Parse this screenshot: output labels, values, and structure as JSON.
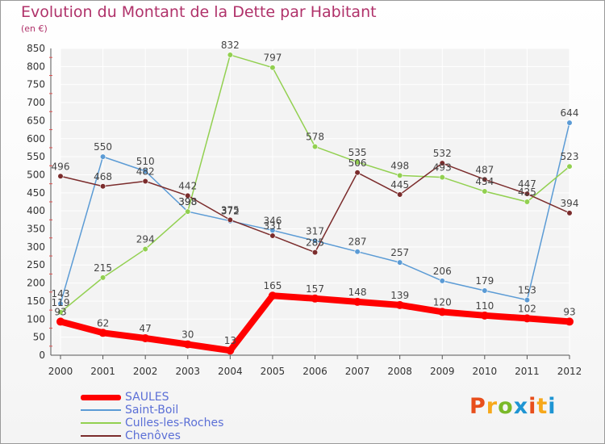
{
  "header": {
    "title": "Evolution du Montant de la Dette par Habitant",
    "subtitle": "(en €)"
  },
  "logo": {
    "text": "Proxiti",
    "colors": [
      "#e84e1b",
      "#f7a81b",
      "#7ab929",
      "#1e95d3",
      "#e84e1b",
      "#f7a81b",
      "#1e95d3"
    ]
  },
  "chart_data": {
    "type": "line",
    "title": "Evolution du Montant de la Dette par Habitant",
    "subtitle": "(en €)",
    "x": [
      "2000",
      "2001",
      "2002",
      "2003",
      "2004",
      "2005",
      "2006",
      "2007",
      "2008",
      "2009",
      "2010",
      "2011",
      "2012"
    ],
    "ylim": [
      0,
      850
    ],
    "yticks": [
      0,
      50,
      100,
      150,
      200,
      250,
      300,
      350,
      400,
      450,
      500,
      550,
      600,
      650,
      700,
      750,
      800,
      850
    ],
    "grid": true,
    "legend_position": "bottom-left",
    "series": [
      {
        "name": "SAULES",
        "color": "#ff0000",
        "values": [
          93,
          62,
          47,
          30,
          13,
          165,
          157,
          148,
          139,
          120,
          110,
          102,
          93
        ]
      },
      {
        "name": "Saint-Boil",
        "color": "#5b9bd5",
        "values": [
          143,
          550,
          510,
          398,
          372,
          346,
          317,
          287,
          257,
          206,
          179,
          153,
          644
        ]
      },
      {
        "name": "Culles-les-Roches",
        "color": "#92d050",
        "values": [
          119,
          215,
          294,
          398,
          832,
          797,
          578,
          535,
          498,
          493,
          454,
          425,
          523
        ]
      },
      {
        "name": "Chenôves",
        "color": "#7b2c2c",
        "values": [
          496,
          468,
          482,
          442,
          375,
          331,
          285,
          506,
          445,
          532,
          487,
          447,
          394
        ]
      }
    ]
  }
}
